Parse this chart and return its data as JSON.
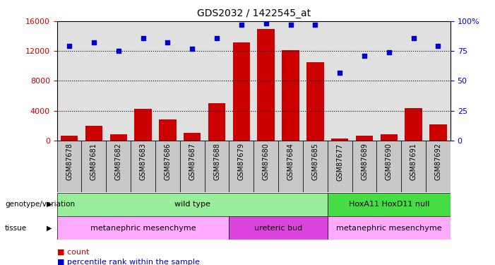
{
  "title": "GDS2032 / 1422545_at",
  "samples": [
    "GSM87678",
    "GSM87681",
    "GSM87682",
    "GSM87683",
    "GSM87686",
    "GSM87687",
    "GSM87688",
    "GSM87679",
    "GSM87680",
    "GSM87684",
    "GSM87685",
    "GSM87677",
    "GSM87689",
    "GSM87690",
    "GSM87691",
    "GSM87692"
  ],
  "counts": [
    600,
    2000,
    800,
    4200,
    2800,
    1000,
    5000,
    13200,
    15000,
    12100,
    10500,
    300,
    600,
    800,
    4300,
    2200
  ],
  "percentiles": [
    79,
    82,
    75,
    86,
    82,
    77,
    86,
    97,
    98,
    97,
    97,
    57,
    71,
    74,
    86,
    79
  ],
  "bar_color": "#cc0000",
  "dot_color": "#0000cc",
  "ylim_left": [
    0,
    16000
  ],
  "ylim_right": [
    0,
    100
  ],
  "yticks_left": [
    0,
    4000,
    8000,
    12000,
    16000
  ],
  "yticks_right": [
    0,
    25,
    50,
    75,
    100
  ],
  "ytick_labels_right": [
    "0",
    "25",
    "50",
    "75",
    "100%"
  ],
  "grid_values": [
    4000,
    8000,
    12000
  ],
  "genotype_groups": [
    {
      "label": "wild type",
      "start": 0,
      "end": 10,
      "color": "#99ee99"
    },
    {
      "label": "HoxA11 HoxD11 null",
      "start": 11,
      "end": 15,
      "color": "#44dd44"
    }
  ],
  "tissue_groups": [
    {
      "label": "metanephric mesenchyme",
      "start": 0,
      "end": 6,
      "color": "#ffaaff"
    },
    {
      "label": "ureteric bud",
      "start": 7,
      "end": 10,
      "color": "#dd44dd"
    },
    {
      "label": "metanephric mesenchyme",
      "start": 11,
      "end": 15,
      "color": "#ffaaff"
    }
  ],
  "legend_count_color": "#cc0000",
  "legend_pct_color": "#0000cc",
  "tick_label_color_left": "#cc0000",
  "tick_label_color_right": "#0000cc",
  "bg_color": "#ffffff",
  "plot_bg_color": "#e0e0e0",
  "xtick_bg_color": "#c8c8c8"
}
